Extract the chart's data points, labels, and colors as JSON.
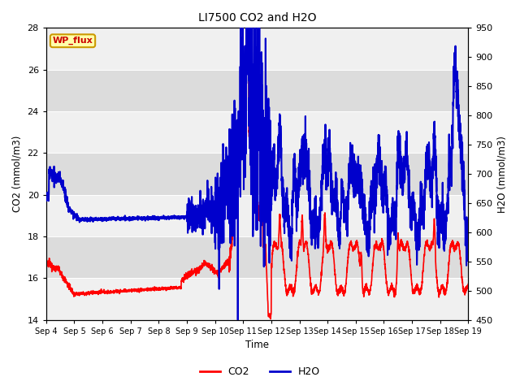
{
  "title": "LI7500 CO2 and H2O",
  "xlabel": "Time",
  "ylabel_left": "CO2 (mmol/m3)",
  "ylabel_right": "H2O (mmol/m3)",
  "annotation": "WP_flux",
  "ylim_left": [
    14,
    28
  ],
  "ylim_right": [
    450,
    950
  ],
  "yticks_left": [
    14,
    16,
    18,
    20,
    22,
    24,
    26,
    28
  ],
  "yticks_right": [
    450,
    500,
    550,
    600,
    650,
    700,
    750,
    800,
    850,
    900,
    950
  ],
  "xtick_labels": [
    "Sep 4",
    "Sep 5",
    "Sep 6",
    "Sep 7",
    "Sep 8",
    "Sep 9",
    "Sep 10",
    "Sep 11",
    "Sep 12",
    "Sep 13",
    "Sep 14",
    "Sep 15",
    "Sep 16",
    "Sep 17",
    "Sep 18",
    "Sep 19"
  ],
  "co2_color": "#ff0000",
  "h2o_color": "#0000cc",
  "bg_color": "#dcdcdc",
  "strip_color": "#f0f0f0",
  "legend_labels": [
    "CO2",
    "H2O"
  ],
  "linewidth": 1.2
}
